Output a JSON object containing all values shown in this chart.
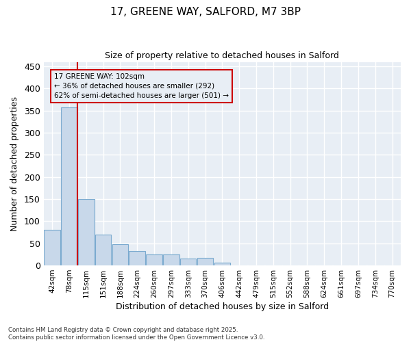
{
  "title_line1": "17, GREENE WAY, SALFORD, M7 3BP",
  "title_line2": "Size of property relative to detached houses in Salford",
  "xlabel": "Distribution of detached houses by size in Salford",
  "ylabel": "Number of detached properties",
  "bar_labels": [
    "42sqm",
    "78sqm",
    "115sqm",
    "151sqm",
    "188sqm",
    "224sqm",
    "260sqm",
    "297sqm",
    "333sqm",
    "370sqm",
    "406sqm",
    "442sqm",
    "479sqm",
    "515sqm",
    "552sqm",
    "588sqm",
    "624sqm",
    "661sqm",
    "697sqm",
    "734sqm",
    "770sqm"
  ],
  "bar_values": [
    80,
    358,
    150,
    70,
    48,
    32,
    25,
    25,
    15,
    17,
    6,
    0,
    0,
    0,
    0,
    0,
    0,
    0,
    0,
    0,
    0
  ],
  "bar_color": "#c8d8ea",
  "bar_edge_color": "#7aaacf",
  "annotation_line1": "17 GREENE WAY: 102sqm",
  "annotation_line2": "← 36% of detached houses are smaller (292)",
  "annotation_line3": "62% of semi-detached houses are larger (501) →",
  "vline_color": "#cc0000",
  "annotation_box_edgecolor": "#cc0000",
  "ylim": [
    0,
    460
  ],
  "yticks": [
    0,
    50,
    100,
    150,
    200,
    250,
    300,
    350,
    400,
    450
  ],
  "footnote1": "Contains HM Land Registry data © Crown copyright and database right 2025.",
  "footnote2": "Contains public sector information licensed under the Open Government Licence v3.0.",
  "bg_color": "#ffffff",
  "plot_bg_color": "#e8eef5",
  "grid_color": "#ffffff"
}
